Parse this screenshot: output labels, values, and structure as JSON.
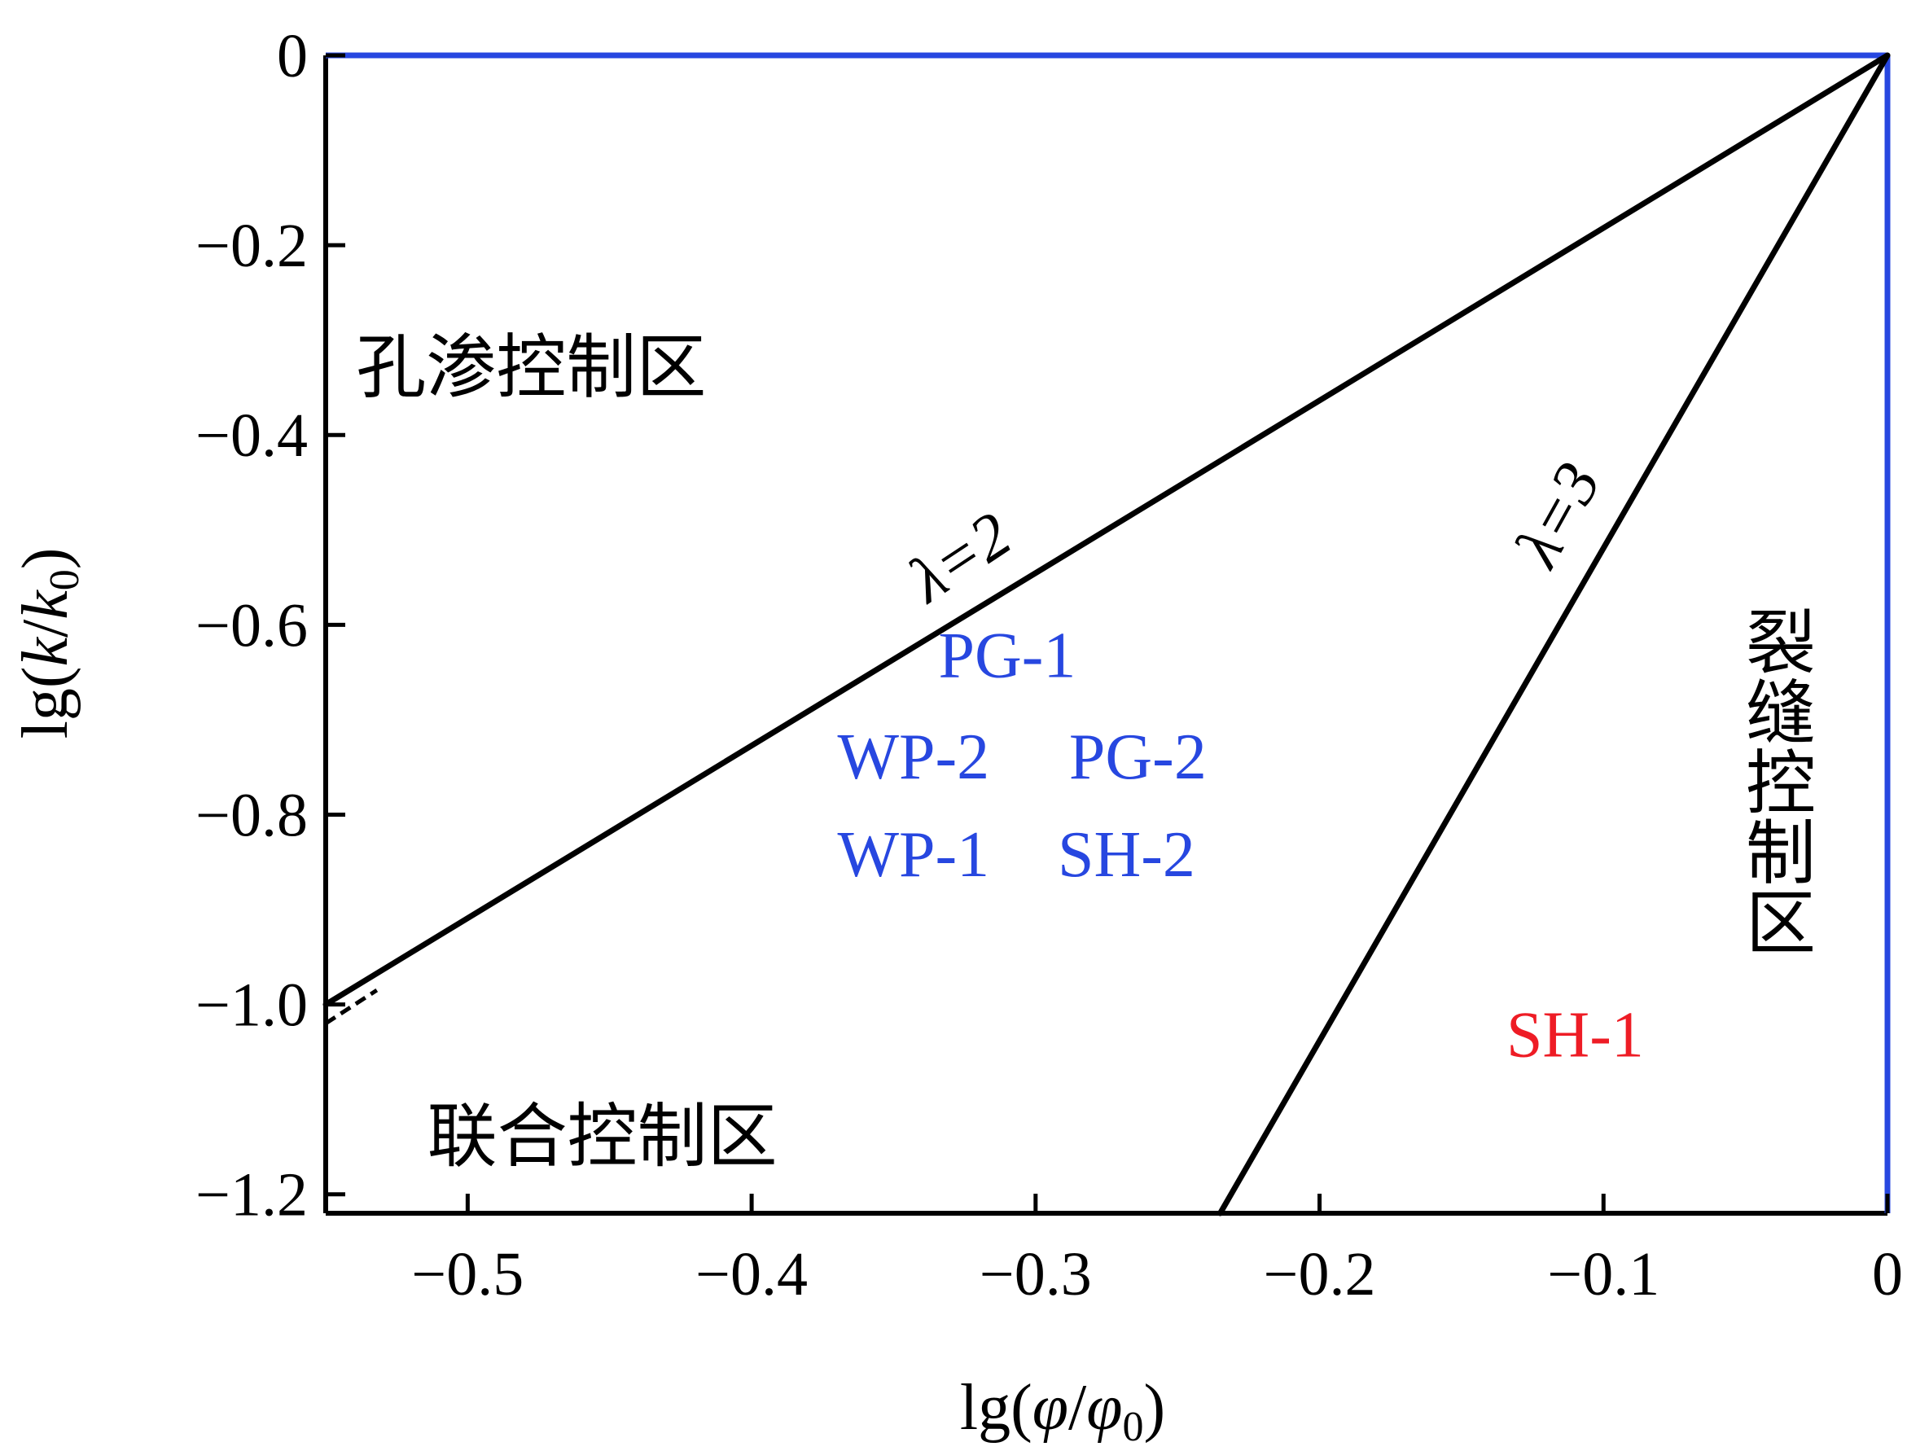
{
  "chart_data": {
    "type": "line",
    "xlabel": {
      "prefix": "lg(",
      "v1": "φ",
      "slash": "/",
      "v2": "φ",
      "sub": "0",
      "suffix": ")"
    },
    "ylabel": {
      "prefix": "lg(",
      "v1": "k",
      "slash": "/",
      "v2": "k",
      "sub": "0",
      "suffix": ")"
    },
    "xlim": [
      -0.55,
      0
    ],
    "ylim": [
      -1.22,
      0
    ],
    "x_ticks": [
      -0.5,
      -0.4,
      -0.3,
      -0.2,
      -0.1,
      0
    ],
    "x_tick_labels": [
      "−0.5",
      "−0.4",
      "−0.3",
      "−0.2",
      "−0.1",
      "0"
    ],
    "y_ticks": [
      0,
      -0.2,
      -0.4,
      -0.6,
      -0.8,
      -1.0,
      -1.2
    ],
    "y_tick_labels": [
      "0",
      "−0.2",
      "−0.4",
      "−0.6",
      "−0.8",
      "−1.0",
      "−1.2"
    ],
    "series": [
      {
        "lambda_text": "λ=2",
        "slope": 1.82,
        "points": [
          [
            -0.55,
            -1.0
          ],
          [
            0,
            0
          ]
        ],
        "color": "#000000"
      },
      {
        "lambda_text": "λ=3",
        "slope": 5.1,
        "points": [
          [
            -0.235,
            -1.22
          ],
          [
            0,
            0
          ]
        ],
        "color": "#000000"
      }
    ],
    "border_segments": [
      {
        "points": [
          [
            -0.55,
            0
          ],
          [
            0,
            0
          ]
        ],
        "color": "#2747e0"
      },
      {
        "points": [
          [
            0,
            0
          ],
          [
            0,
            -1.22
          ]
        ],
        "color": "#2747e0"
      }
    ],
    "regions": [
      {
        "label": "孔渗控制区",
        "anchor": [
          -0.545,
          -0.33
        ]
      },
      {
        "label": "联合控制区",
        "anchor": [
          -0.52,
          -1.14
        ]
      },
      {
        "label": "裂缝控制区",
        "anchor": [
          -0.04,
          -0.58
        ],
        "vertical": true
      }
    ],
    "samples": [
      {
        "label": "PG-1",
        "color": "#2747e0",
        "anchor": [
          -0.31,
          -0.655
        ]
      },
      {
        "label": "WP-2",
        "color": "#2747e0",
        "anchor": [
          -0.343,
          -0.762
        ]
      },
      {
        "label": "PG-2",
        "color": "#2747e0",
        "anchor": [
          -0.264,
          -0.762
        ]
      },
      {
        "label": "WP-1",
        "color": "#2747e0",
        "anchor": [
          -0.343,
          -0.865
        ]
      },
      {
        "label": "SH-2",
        "color": "#2747e0",
        "anchor": [
          -0.268,
          -0.865
        ]
      },
      {
        "label": "SH-1",
        "color": "#ee1c25",
        "anchor": [
          -0.11,
          -1.055
        ]
      }
    ]
  }
}
